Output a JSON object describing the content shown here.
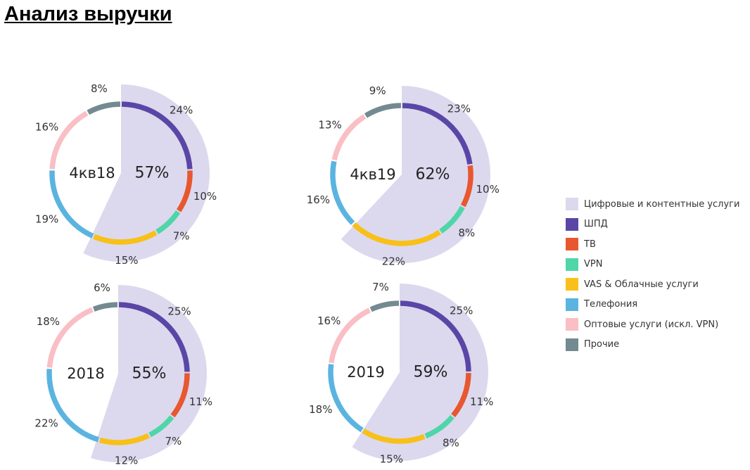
{
  "title": "Анализ выручки",
  "legend": [
    {
      "label": "Цифровые и контентные услуги",
      "color": "#DCD9EE"
    },
    {
      "label": "ШПД",
      "color": "#5A46A6"
    },
    {
      "label": "ТВ",
      "color": "#E8572F"
    },
    {
      "label": "VPN",
      "color": "#4FD6A8"
    },
    {
      "label": "VAS & Облачные услуги",
      "color": "#F8C018"
    },
    {
      "label": "Телефония",
      "color": "#5BB4E0"
    },
    {
      "label": "Оптовые услуги (искл. VPN)",
      "color": "#F9BFC4"
    },
    {
      "label": "Прочие",
      "color": "#738A90"
    }
  ],
  "chart_data": [
    {
      "type": "pie",
      "title": "4кв18",
      "digital_share": "57%",
      "digital_value": 57,
      "categories": [
        "ШПД",
        "ТВ",
        "VPN",
        "VAS & Облачные услуги",
        "Телефония",
        "Оптовые услуги (искл. VPN)",
        "Прочие"
      ],
      "values": [
        24,
        10,
        7,
        15,
        19,
        16,
        8
      ],
      "labels": [
        "24%",
        "10%",
        "7%",
        "15%",
        "19%",
        "16%",
        "8%"
      ]
    },
    {
      "type": "pie",
      "title": "4кв19",
      "digital_share": "62%",
      "digital_value": 62,
      "categories": [
        "ШПД",
        "ТВ",
        "VPN",
        "VAS & Облачные услуги",
        "Телефония",
        "Оптовые услуги (искл. VPN)",
        "Прочие"
      ],
      "values": [
        23,
        10,
        8,
        22,
        16,
        13,
        9
      ],
      "labels": [
        "23%",
        "10%",
        "8%",
        "22%",
        "16%",
        "13%",
        "9%"
      ]
    },
    {
      "type": "pie",
      "title": "2018",
      "digital_share": "55%",
      "digital_value": 55,
      "categories": [
        "ШПД",
        "ТВ",
        "VPN",
        "VAS & Облачные услуги",
        "Телефония",
        "Оптовые услуги (искл. VPN)",
        "Прочие"
      ],
      "values": [
        25,
        11,
        7,
        12,
        22,
        18,
        6
      ],
      "labels": [
        "25%",
        "11%",
        "7%",
        "12%",
        "22%",
        "18%",
        "6%"
      ]
    },
    {
      "type": "pie",
      "title": "2019",
      "digital_share": "59%",
      "digital_value": 59,
      "categories": [
        "ШПД",
        "ТВ",
        "VPN",
        "VAS & Облачные услуги",
        "Телефония",
        "Оптовые услуги (искл. VPN)",
        "Прочие"
      ],
      "values": [
        25,
        11,
        8,
        15,
        18,
        16,
        7
      ],
      "labels": [
        "25%",
        "11%",
        "8%",
        "15%",
        "18%",
        "16%",
        "7%"
      ]
    }
  ]
}
